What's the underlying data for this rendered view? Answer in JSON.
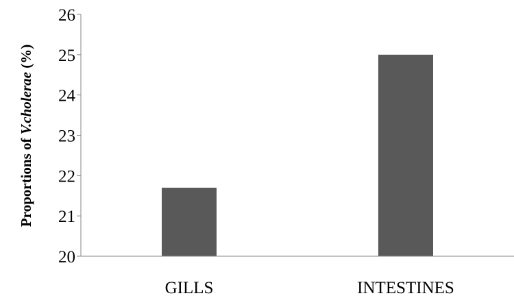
{
  "chart_data": {
    "type": "bar",
    "title": "",
    "xlabel": "",
    "ylabel_prefix": "Proportions of ",
    "ylabel_italic": "V.cholerae",
    "ylabel_suffix": " (%)",
    "categories": [
      "GILLS",
      "INTESTINES"
    ],
    "values": [
      21.7,
      25.0
    ],
    "ylim": [
      20,
      26
    ],
    "yticks": [
      20,
      21,
      22,
      23,
      24,
      25,
      26
    ],
    "grid": false,
    "legend": "none",
    "bar_color": "#595959",
    "axis_color": "#868686"
  }
}
